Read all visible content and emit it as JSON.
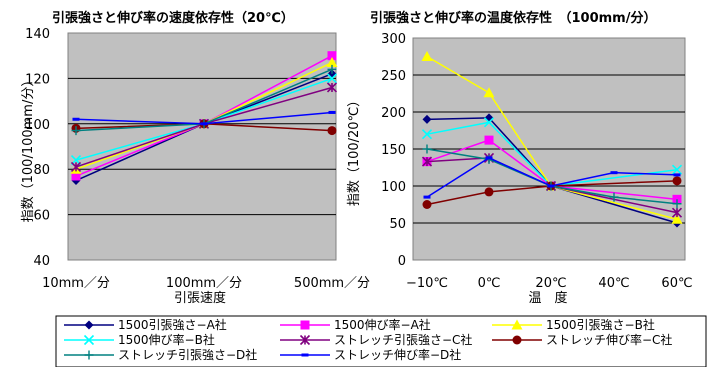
{
  "chart_data": [
    {
      "type": "line",
      "title": "引張強さと伸び率の速度依存性（20℃）",
      "xlabel": "引張速度",
      "ylabel": "指数（100/100mm/分）",
      "categories": [
        "10mm／分",
        "100mm／分",
        "500mm／分"
      ],
      "ylim": [
        40,
        140
      ],
      "yticks": [
        40,
        60,
        80,
        100,
        120,
        140
      ],
      "grid": true,
      "series": [
        {
          "name": "1500引張強さ−A社",
          "values": [
            75,
            100,
            122
          ]
        },
        {
          "name": "1500伸び率−A社",
          "values": [
            77,
            100,
            130
          ]
        },
        {
          "name": "1500引張強さ−B社",
          "values": [
            80,
            100,
            127
          ]
        },
        {
          "name": "1500伸び率−B社",
          "values": [
            84,
            100,
            120
          ]
        },
        {
          "name": "ストレッチ引張強さ−C社",
          "values": [
            81,
            100,
            116
          ]
        },
        {
          "name": "ストレッチ伸び率−C社",
          "values": [
            98,
            100,
            97
          ]
        },
        {
          "name": "ストレッチ引張強さ−D社",
          "values": [
            97,
            100,
            124
          ]
        },
        {
          "name": "ストレッチ伸び率−D社",
          "values": [
            102,
            100,
            105
          ]
        }
      ]
    },
    {
      "type": "line",
      "title": "引張強さと伸び率の温度依存性　（100mm/分）",
      "xlabel": "温　度",
      "ylabel": "指数（100/20℃）",
      "categories": [
        "−10℃",
        "0℃",
        "20℃",
        "40℃",
        "60℃"
      ],
      "ylim": [
        0,
        300
      ],
      "yticks": [
        0,
        50,
        100,
        150,
        200,
        250,
        300
      ],
      "grid": true,
      "series": [
        {
          "name": "1500引張強さ−A社",
          "values": [
            190,
            192,
            100,
            null,
            50
          ]
        },
        {
          "name": "1500伸び率−A社",
          "values": [
            133,
            162,
            100,
            null,
            82
          ]
        },
        {
          "name": "1500引張強さ−B社",
          "values": [
            275,
            226,
            100,
            null,
            55
          ]
        },
        {
          "name": "1500伸び率−B社",
          "values": [
            170,
            186,
            100,
            null,
            122
          ]
        },
        {
          "name": "ストレッチ引張強さ−C社",
          "values": [
            133,
            138,
            100,
            null,
            64
          ]
        },
        {
          "name": "ストレッチ伸び率−C社",
          "values": [
            75,
            92,
            100,
            null,
            107
          ]
        },
        {
          "name": "ストレッチ引張強さ−D社",
          "values": [
            150,
            136,
            100,
            85,
            76
          ]
        },
        {
          "name": "ストレッチ伸び率−D社",
          "values": [
            85,
            138,
            100,
            118,
            115
          ]
        }
      ]
    }
  ],
  "legend": {
    "items": [
      {
        "label": "1500引張強さ−A社",
        "color": "#000080",
        "marker": "diamond"
      },
      {
        "label": "1500伸び率−A社",
        "color": "#ff00ff",
        "marker": "square"
      },
      {
        "label": "1500引張強さ−B社",
        "color": "#ffff00",
        "marker": "triangle"
      },
      {
        "label": "1500伸び率−B社",
        "color": "#00ffff",
        "marker": "x"
      },
      {
        "label": "ストレッチ引張強さ−C社",
        "color": "#800080",
        "marker": "star"
      },
      {
        "label": "ストレッチ伸び率−C社",
        "color": "#800000",
        "marker": "circle"
      },
      {
        "label": "ストレッチ引張強さ−D社",
        "color": "#008080",
        "marker": "plus"
      },
      {
        "label": "ストレッチ伸び率−D社",
        "color": "#0000ff",
        "marker": "dash"
      }
    ]
  },
  "plot_background": "#c0c0c0"
}
